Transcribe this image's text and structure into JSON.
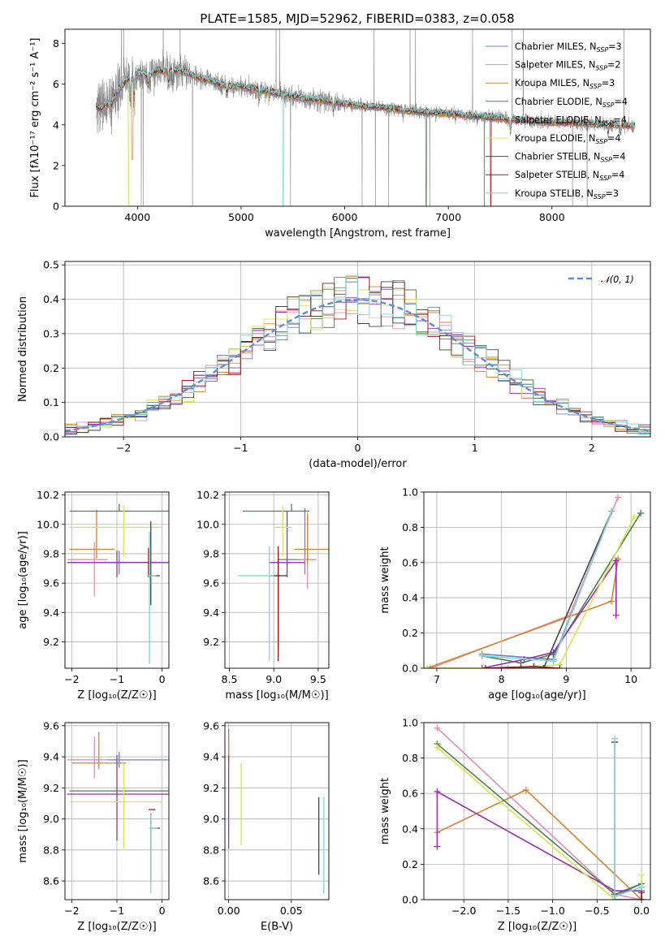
{
  "figure": {
    "title": "PLATE=1585, MJD=52962, FIBERID=0383, z=0.058"
  },
  "models": [
    {
      "name": "Chabrier MILES",
      "nssp": "3",
      "color": "#6a82c2"
    },
    {
      "name": "Salpeter MILES",
      "nssp": "2",
      "color": "#e88ab8"
    },
    {
      "name": "Kroupa MILES",
      "nssp": "3",
      "color": "#d4852b"
    },
    {
      "name": "Chabrier ELODIE",
      "nssp": "4",
      "color": "#4f7f4f"
    },
    {
      "name": "Salpeter ELODIE",
      "nssp": "4",
      "color": "#9b2fae"
    },
    {
      "name": "Kroupa ELODIE",
      "nssp": "4",
      "color": "#d6e84a"
    },
    {
      "name": "Chabrier STELIB",
      "nssp": "4",
      "color": "#444444"
    },
    {
      "name": "Salpeter STELIB",
      "nssp": "4",
      "color": "#a01818"
    },
    {
      "name": "Kroupa STELIB",
      "nssp": "3",
      "color": "#7fd6d2"
    }
  ],
  "chart_data": [
    {
      "id": "spectrum",
      "type": "line",
      "xlabel": "wavelength [Angstrom, rest frame]",
      "ylabel": "Flux [fλ10⁻¹⁷ erg cm⁻² s⁻¹ A⁻¹]",
      "xlim": [
        3300,
        8950
      ],
      "ylim": [
        0,
        8.7
      ],
      "xticks": [
        4000,
        5000,
        6000,
        7000,
        8000
      ],
      "yticks": [
        0,
        2,
        4,
        6,
        8
      ],
      "grid": false,
      "legend": "top-right",
      "data_color": "#888888",
      "data_range": [
        3600,
        8800
      ],
      "model_curve": {
        "x": [
          3600,
          3650,
          3700,
          3750,
          3800,
          3850,
          3900,
          3950,
          4000,
          4100,
          4200,
          4300,
          4400,
          4500,
          4600,
          4700,
          4800,
          4900,
          5000,
          5200,
          5400,
          5600,
          5800,
          6000,
          6200,
          6400,
          6600,
          6800,
          7000,
          7200,
          7400,
          7600,
          7800,
          8000,
          8200,
          8400,
          8600,
          8800
        ],
        "y": [
          4.9,
          4.8,
          5.0,
          5.0,
          5.6,
          5.9,
          6.2,
          6.3,
          6.6,
          6.4,
          6.7,
          6.6,
          6.7,
          6.5,
          6.3,
          6.2,
          6.0,
          5.9,
          5.9,
          5.7,
          5.5,
          5.3,
          5.2,
          5.05,
          4.9,
          4.85,
          4.7,
          4.6,
          4.55,
          4.45,
          4.4,
          4.25,
          4.2,
          4.1,
          4.1,
          4.05,
          4.0,
          3.95
        ]
      }
    },
    {
      "id": "residuals",
      "type": "line",
      "xlabel": "(data-model)/error",
      "ylabel": "Normed distribution",
      "xlim": [
        -2.5,
        2.5
      ],
      "ylim": [
        0,
        0.51
      ],
      "xticks": [
        -2,
        -1,
        0,
        1,
        2
      ],
      "yticks": [
        0.0,
        0.1,
        0.2,
        0.3,
        0.4,
        0.5
      ],
      "grid": true,
      "legend": "top-right",
      "gaussian_label": "𝒩(0, 1)",
      "gaussian_color": "#5b8fd6",
      "bin_width": 0.1,
      "bins_start": -2.5
    },
    {
      "id": "age-vs-z",
      "type": "scatter",
      "xlabel": "Z [log₁₀(Z/Z☉)]",
      "ylabel": "age  [log₁₀(age/yr)]",
      "xlim": [
        -2.15,
        0.15
      ],
      "ylim": [
        9.02,
        10.22
      ],
      "xticks": [
        -2,
        -1,
        0
      ],
      "yticks": [
        9.2,
        9.4,
        9.6,
        9.8,
        10.0,
        10.2
      ],
      "grid": true,
      "points": [
        {
          "m": 0,
          "x": -0.95,
          "y": 9.74,
          "xl": 1.1,
          "xh": 1.1,
          "yl": 0.08,
          "yh": 0.08
        },
        {
          "m": 1,
          "x": -1.5,
          "y": 9.76,
          "xl": 0.6,
          "xh": 0.3,
          "yl": 0.25,
          "yh": 0.12
        },
        {
          "m": 2,
          "x": -1.45,
          "y": 9.83,
          "xl": 0.6,
          "xh": 0.4,
          "yl": 0.06,
          "yh": 0.27
        },
        {
          "m": 3,
          "x": -0.95,
          "y": 10.09,
          "xl": 1.1,
          "xh": 1.1,
          "yl": 0.0,
          "yh": 0.05
        },
        {
          "m": 4,
          "x": -1.0,
          "y": 9.74,
          "xl": 1.1,
          "xh": 1.15,
          "yl": 0.1,
          "yh": 0.08
        },
        {
          "m": 5,
          "x": -0.85,
          "y": 9.98,
          "xl": 1.2,
          "xh": 0.85,
          "yl": 0.2,
          "yh": 0.15
        },
        {
          "m": 6,
          "x": -0.25,
          "y": 9.65,
          "xl": 0.02,
          "xh": 0.2,
          "yl": 0.2,
          "yh": 0.37
        },
        {
          "m": 7,
          "x": -0.3,
          "y": 9.74,
          "xl": 0.02,
          "xh": 0.02,
          "yl": 0.1,
          "yh": 0.1
        },
        {
          "m": 8,
          "x": -0.28,
          "y": 9.65,
          "xl": 0.05,
          "xh": 0.15,
          "yl": 0.6,
          "yh": 0.3
        }
      ]
    },
    {
      "id": "age-vs-mass",
      "type": "scatter",
      "xlabel": "mass [log₁₀(M/M☉)]",
      "ylabel": "",
      "xlim": [
        8.45,
        9.62
      ],
      "ylim": [
        9.02,
        10.22
      ],
      "xticks": [
        8.5,
        9.0,
        9.5
      ],
      "yticks": [
        9.2,
        9.4,
        9.6,
        9.8,
        10.0,
        10.2
      ],
      "grid": true,
      "points": [
        {
          "m": 0,
          "x": 9.35,
          "y": 9.76,
          "xl": 0.3,
          "xh": 0.12,
          "yl": 0.1,
          "yh": 0.35
        },
        {
          "m": 1,
          "x": 9.38,
          "y": 9.76,
          "xl": 0.1,
          "xh": 0.1,
          "yl": 0.2,
          "yh": 0.3
        },
        {
          "m": 2,
          "x": 9.38,
          "y": 9.83,
          "xl": 0.15,
          "xh": 0.25,
          "yl": 0.1,
          "yh": 0.25
        },
        {
          "m": 3,
          "x": 9.2,
          "y": 10.09,
          "xl": 0.55,
          "xh": 0.2,
          "yl": 0.0,
          "yh": 0.05
        },
        {
          "m": 4,
          "x": 9.15,
          "y": 9.74,
          "xl": 0.2,
          "xh": 0.2,
          "yl": 0.1,
          "yh": 0.35
        },
        {
          "m": 5,
          "x": 9.1,
          "y": 9.98,
          "xl": 0.1,
          "xh": 0.1,
          "yl": 0.2,
          "yh": 0.15
        },
        {
          "m": 6,
          "x": 9.05,
          "y": 9.65,
          "xl": 0.1,
          "xh": 0.1,
          "yl": 0.5,
          "yh": 0.15
        },
        {
          "m": 7,
          "x": 9.05,
          "y": 9.65,
          "xl": 0.02,
          "xh": 0.02,
          "yl": 0.58,
          "yh": 0.2
        },
        {
          "m": 8,
          "x": 8.95,
          "y": 9.65,
          "xl": 0.35,
          "xh": 0.05,
          "yl": 0.58,
          "yh": 0.2
        }
      ]
    },
    {
      "id": "mass-weight-vs-age",
      "type": "line",
      "xlabel": "age  [log₁₀(age/yr)]",
      "ylabel": "mass weight",
      "xlim": [
        6.8,
        10.3
      ],
      "ylim": [
        0,
        1.0
      ],
      "xticks": [
        7,
        8,
        9,
        10
      ],
      "yticks": [
        0.0,
        0.2,
        0.4,
        0.6,
        0.8,
        1.0
      ],
      "grid": true,
      "series": [
        {
          "m": 0,
          "x": [
            7.7,
            8.8,
            9.7
          ],
          "y": [
            0.08,
            0.05,
            0.89
          ]
        },
        {
          "m": 1,
          "x": [
            6.9,
            9.05,
            9.8
          ],
          "y": [
            0.0,
            0.3,
            0.97
          ]
        },
        {
          "m": 2,
          "x": [
            6.85,
            9.7,
            9.8
          ],
          "y": [
            0.0,
            0.38,
            0.62
          ]
        },
        {
          "m": 3,
          "x": [
            7.7,
            8.3,
            8.8,
            10.15
          ],
          "y": [
            0.07,
            0.03,
            0.08,
            0.88
          ]
        },
        {
          "m": 4,
          "x": [
            7.7,
            8.35,
            8.8,
            9.77,
            9.77
          ],
          "y": [
            0.0,
            0.05,
            0.09,
            0.61,
            0.3
          ]
        },
        {
          "m": 5,
          "x": [
            6.85,
            8.1,
            8.9,
            10.05
          ],
          "y": [
            0.0,
            0.0,
            0.02,
            0.86
          ]
        },
        {
          "m": 6,
          "x": [
            8.3,
            8.65,
            9.7
          ],
          "y": [
            0.0,
            0.0,
            0.89
          ]
        },
        {
          "m": 7,
          "x": [
            7.75,
            8.5,
            8.9
          ],
          "y": [
            0.0,
            0.01,
            0.0
          ]
        },
        {
          "m": 8,
          "x": [
            7.7,
            8.8,
            9.7
          ],
          "y": [
            0.07,
            0.04,
            0.89
          ]
        }
      ]
    },
    {
      "id": "mass-vs-z",
      "type": "scatter",
      "xlabel": "Z [log₁₀(Z/Z☉)]",
      "ylabel": "mass [log₁₀(M/M☉)]",
      "xlim": [
        -2.15,
        0.15
      ],
      "ylim": [
        8.48,
        9.62
      ],
      "xticks": [
        -2,
        -1,
        0
      ],
      "yticks": [
        8.6,
        8.8,
        9.0,
        9.2,
        9.4,
        9.6
      ],
      "grid": true,
      "points": [
        {
          "m": 0,
          "x": -0.95,
          "y": 9.38,
          "xl": 1.1,
          "xh": 1.1,
          "yl": 0.05,
          "yh": 0.05
        },
        {
          "m": 1,
          "x": -1.5,
          "y": 9.38,
          "xl": 0.6,
          "xh": 0.3,
          "yl": 0.12,
          "yh": 0.15
        },
        {
          "m": 2,
          "x": -1.4,
          "y": 9.36,
          "xl": 0.6,
          "xh": 0.6,
          "yl": 0.04,
          "yh": 0.2
        },
        {
          "m": 3,
          "x": -0.95,
          "y": 9.18,
          "xl": 1.1,
          "xh": 1.1,
          "yl": 0.0,
          "yh": 0.0
        },
        {
          "m": 4,
          "x": -1.0,
          "y": 9.16,
          "xl": 1.1,
          "xh": 1.2,
          "yl": 0.3,
          "yh": 0.25
        },
        {
          "m": 5,
          "x": -0.85,
          "y": 9.11,
          "xl": 1.2,
          "xh": 0.85,
          "yl": 0.3,
          "yh": 0.25
        },
        {
          "m": 6,
          "x": -0.25,
          "y": 8.94,
          "xl": 0.02,
          "xh": 0.2,
          "yl": 0.35,
          "yh": 0.1
        },
        {
          "m": 7,
          "x": -0.25,
          "y": 9.06,
          "xl": 0.05,
          "xh": 0.1,
          "yl": 0.0,
          "yh": 0.0
        },
        {
          "m": 8,
          "x": -0.25,
          "y": 8.94,
          "xl": 0.05,
          "xh": 0.15,
          "yl": 0.42,
          "yh": 0.1
        }
      ]
    },
    {
      "id": "mass-vs-ebv",
      "type": "scatter",
      "xlabel": "E(B-V)",
      "ylabel": "",
      "xlim": [
        -0.003,
        0.08
      ],
      "ylim": [
        8.48,
        9.62
      ],
      "xticks": [
        0.0,
        0.05
      ],
      "yticks": [
        8.6,
        8.8,
        9.0,
        9.2,
        9.4,
        9.6
      ],
      "grid": true,
      "points": [
        {
          "m": 0,
          "x": 0.0,
          "y": 9.38,
          "xl": 0,
          "xh": 0,
          "yl": 0.0,
          "yh": 0.2
        },
        {
          "m": 1,
          "x": 0.0,
          "y": 9.38,
          "xl": 0,
          "xh": 0,
          "yl": 0.0,
          "yh": 0.15
        },
        {
          "m": 2,
          "x": 0.0,
          "y": 9.36,
          "xl": 0,
          "xh": 0,
          "yl": 0.0,
          "yh": 0.18
        },
        {
          "m": 3,
          "x": 0.0,
          "y": 9.18,
          "xl": 0,
          "xh": 0,
          "yl": 0.0,
          "yh": 0.0
        },
        {
          "m": 4,
          "x": 0.0,
          "y": 9.16,
          "xl": 0,
          "xh": 0,
          "yl": 0.35,
          "yh": 0.25
        },
        {
          "m": 5,
          "x": 0.01,
          "y": 9.11,
          "xl": 0,
          "xh": 0,
          "yl": 0.28,
          "yh": 0.25
        },
        {
          "m": 6,
          "x": 0.072,
          "y": 8.94,
          "xl": 0,
          "xh": 0,
          "yl": 0.3,
          "yh": 0.2
        },
        {
          "m": 7,
          "x": 0.075,
          "y": 8.94,
          "xl": 0,
          "xh": 0,
          "yl": 0.0,
          "yh": 0.0
        },
        {
          "m": 8,
          "x": 0.076,
          "y": 8.94,
          "xl": 0,
          "xh": 0,
          "yl": 0.42,
          "yh": 0.2
        }
      ]
    },
    {
      "id": "mass-weight-vs-z",
      "type": "line",
      "xlabel": "Z [log₁₀(Z/Z☉)]",
      "ylabel": "mass weight",
      "xlim": [
        -2.45,
        0.1
      ],
      "ylim": [
        0,
        1.0
      ],
      "xticks": [
        -2.0,
        -1.5,
        -1.0,
        -0.5,
        0.0
      ],
      "yticks": [
        0.0,
        0.2,
        0.4,
        0.6,
        0.8,
        1.0
      ],
      "grid": true,
      "series": [
        {
          "m": 0,
          "x": [
            -0.3,
            -0.3,
            0.0
          ],
          "y": [
            0.89,
            0.02,
            0.09
          ]
        },
        {
          "m": 1,
          "x": [
            -2.3,
            -0.3,
            0.0
          ],
          "y": [
            0.97,
            0.03,
            0.0
          ]
        },
        {
          "m": 2,
          "x": [
            -2.3,
            -1.3,
            0.0
          ],
          "y": [
            0.38,
            0.62,
            0.0
          ]
        },
        {
          "m": 3,
          "x": [
            -2.3,
            -0.3,
            0.0
          ],
          "y": [
            0.88,
            0.03,
            0.09
          ]
        },
        {
          "m": 4,
          "x": [
            -2.3,
            -2.3,
            -0.3,
            0.0
          ],
          "y": [
            0.3,
            0.61,
            0.05,
            0.05
          ]
        },
        {
          "m": 5,
          "x": [
            -2.3,
            -0.3,
            0.0,
            0.0
          ],
          "y": [
            0.86,
            0.0,
            0.0,
            0.14
          ]
        },
        {
          "m": 6,
          "x": [
            -0.3,
            -0.3,
            0.0
          ],
          "y": [
            0.89,
            0.0,
            0.0
          ]
        },
        {
          "m": 7,
          "x": [
            0.0,
            0.0
          ],
          "y": [
            0.0,
            0.04
          ]
        },
        {
          "m": 8,
          "x": [
            -0.3,
            -0.3,
            0.0
          ],
          "y": [
            0.91,
            0.02,
            0.07
          ]
        }
      ]
    }
  ]
}
